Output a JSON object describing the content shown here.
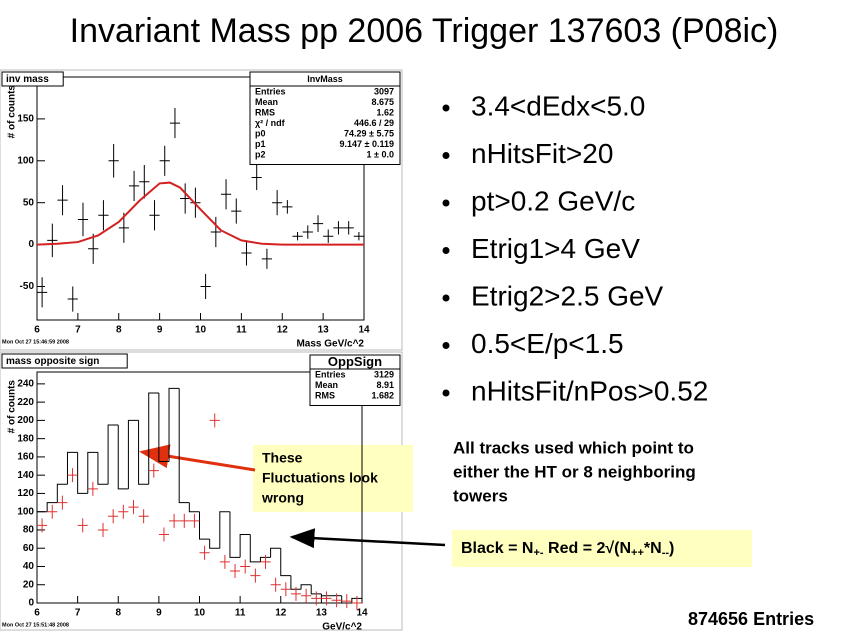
{
  "title": "Invariant Mass pp 2006 Trigger 137603 (P08ic)",
  "bullets": [
    "3.4<dEdx<5.0",
    "nHitsFit>20",
    "pt>0.2 GeV/c",
    "Etrig1>4 GeV",
    "Etrig2>2.5 GeV",
    "0.5<E/p<1.5",
    "nHitsFit/nPos>0.52"
  ],
  "note": [
    "All tracks used which point to",
    "either the HT or 8 neighboring",
    "towers"
  ],
  "callout": [
    "These",
    "Fluctuations look",
    "wrong"
  ],
  "legend_formula": [
    "Black = N",
    "+-",
    " Red = 2√(N",
    "++",
    "*N",
    "--",
    ")"
  ],
  "entries_note": "874656 Entries",
  "chart_data": [
    {
      "type": "errorbar",
      "title": "inv mass",
      "xlabel": "Mass GeV/c^2",
      "ylabel": "# of counts",
      "timestamp": "Mon Oct 27 15:46:59 2008",
      "stats": {
        "title": "InvMass",
        "rows": [
          [
            "Entries",
            "3097"
          ],
          [
            "Mean",
            "8.675"
          ],
          [
            "RMS",
            "1.62"
          ],
          [
            "χ² / ndf",
            "446.6 / 29"
          ],
          [
            "p0",
            "74.29 ± 5.75"
          ],
          [
            "p1",
            "9.147 ± 0.119"
          ],
          [
            "p2",
            "1 ± 0.0"
          ]
        ]
      },
      "xlim": [
        6,
        14
      ],
      "ylim": [
        -90,
        200
      ],
      "xticks": [
        6,
        7,
        8,
        9,
        10,
        11,
        12,
        13,
        14
      ],
      "yticks": [
        -50,
        0,
        50,
        100,
        150
      ],
      "color": "#000000",
      "x": [
        6.125,
        6.375,
        6.625,
        6.875,
        7.125,
        7.375,
        7.625,
        7.875,
        8.125,
        8.375,
        8.625,
        8.875,
        9.125,
        9.375,
        9.625,
        9.875,
        10.125,
        10.375,
        10.625,
        10.875,
        11.125,
        11.375,
        11.625,
        11.875,
        12.125,
        12.375,
        12.625,
        12.875,
        13.125,
        13.375,
        13.625,
        13.875
      ],
      "values": [
        -57,
        5,
        53,
        -65,
        30,
        -5,
        35,
        100,
        20,
        70,
        75,
        35,
        100,
        145,
        55,
        50,
        -50,
        15,
        60,
        40,
        -10,
        80,
        -17,
        50,
        45,
        10,
        15,
        25,
        10,
        20,
        20,
        10
      ],
      "errors": [
        18,
        20,
        18,
        15,
        20,
        18,
        18,
        20,
        18,
        18,
        20,
        18,
        18,
        18,
        18,
        18,
        15,
        18,
        18,
        15,
        15,
        15,
        12,
        15,
        8,
        5,
        8,
        10,
        8,
        8,
        8,
        5
      ],
      "fit": {
        "color": "#d42020",
        "x": [
          6,
          6.5,
          7,
          7.5,
          8,
          8.5,
          9,
          9.25,
          9.5,
          10,
          10.5,
          11,
          11.5,
          12,
          14
        ],
        "values": [
          0,
          1,
          3,
          11,
          27,
          52,
          73,
          74,
          68,
          42,
          17,
          5,
          1,
          0,
          0
        ]
      }
    },
    {
      "type": "histogram",
      "title": "mass opposite sign",
      "xlabel": "GeV/c^2",
      "ylabel": "# of counts",
      "timestamp": "Mon Oct 27 15:51:48 2008",
      "stats": {
        "title": "OppSign",
        "rows": [
          [
            "Entries",
            "3129"
          ],
          [
            "Mean",
            "8.91"
          ],
          [
            "RMS",
            "1.682"
          ]
        ]
      },
      "xlim": [
        6,
        14
      ],
      "ylim": [
        0,
        253
      ],
      "xticks": [
        6,
        7,
        8,
        9,
        10,
        11,
        12,
        13,
        14
      ],
      "yticks": [
        0,
        20,
        40,
        60,
        80,
        100,
        120,
        140,
        160,
        180,
        200,
        220,
        240
      ],
      "bins": [
        6,
        6.25,
        6.5,
        6.75,
        7,
        7.25,
        7.5,
        7.75,
        8,
        8.25,
        8.5,
        8.75,
        9,
        9.25,
        9.5,
        9.75,
        10,
        10.25,
        10.5,
        10.75,
        11,
        11.25,
        11.5,
        11.75,
        12,
        12.25,
        12.5,
        12.75,
        13,
        13.25,
        13.5,
        13.75,
        14
      ],
      "series": [
        {
          "color": "#000000",
          "style": "step",
          "values": [
            100,
            110,
            130,
            165,
            120,
            165,
            130,
            195,
            125,
            200,
            130,
            230,
            155,
            235,
            110,
            100,
            70,
            60,
            100,
            50,
            75,
            45,
            50,
            60,
            30,
            15,
            20,
            10,
            8,
            8,
            0,
            5
          ]
        },
        {
          "color": "#e03030",
          "style": "points",
          "values": [
            85,
            100,
            110,
            140,
            85,
            125,
            80,
            95,
            100,
            105,
            95,
            145,
            75,
            90,
            90,
            90,
            55,
            200,
            45,
            35,
            40,
            30,
            45,
            20,
            15,
            10,
            8,
            5,
            5,
            3,
            2,
            0
          ]
        }
      ]
    }
  ]
}
